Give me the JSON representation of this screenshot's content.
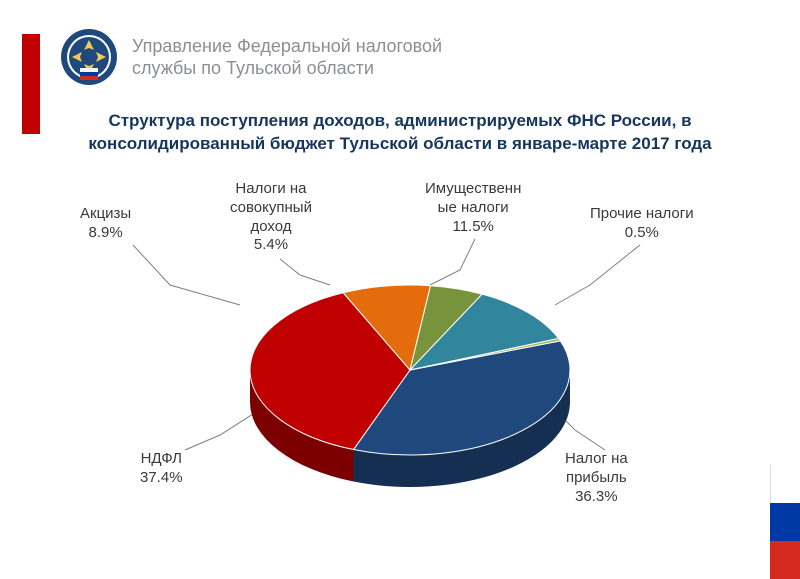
{
  "header": {
    "org_line1": "Управление Федеральной налоговой",
    "org_line2": "службы по Тульской области"
  },
  "title": "Структура поступления доходов, администрируемых ФНС России, в консолидированный бюджет Тульской  области в\nянваре-марте  2017 года",
  "chart": {
    "type": "pie",
    "background_color": "#ffffff",
    "title_color": "#16365c",
    "title_fontsize": 17,
    "label_fontsize": 15,
    "label_color": "#3a3a3a",
    "leader_color": "#7f7f7f",
    "slices": [
      {
        "label": "Налог на\nприбыль",
        "value": 36.3,
        "display": "Налог на\nприбыль\n36.3%",
        "color": "#1f497d"
      },
      {
        "label": "НДФЛ",
        "value": 37.4,
        "display": "НДФЛ\n37.4%",
        "color": "#c00000"
      },
      {
        "label": "Акцизы",
        "value": 8.9,
        "display": "Акцизы\n8.9%",
        "color": "#e46c0a"
      },
      {
        "label": "Налоги на\nсовокупный\nдоход",
        "value": 5.4,
        "display": "Налоги на\nсовокупный\nдоход\n5.4%",
        "color": "#77933c"
      },
      {
        "label": "Имущественн\nые налоги",
        "value": 11.5,
        "display": "Имущественн\nые налоги\n11.5%",
        "color": "#31859c"
      },
      {
        "label": "Прочие налоги",
        "value": 0.5,
        "display": "Прочие налоги\n0.5%",
        "color": "#9bbb59"
      }
    ],
    "depth_color_darken": 0.65
  },
  "flag_colors": {
    "white": "#ffffff",
    "blue": "#0039a6",
    "red": "#d52b1e"
  },
  "accent_red": "#c00000"
}
